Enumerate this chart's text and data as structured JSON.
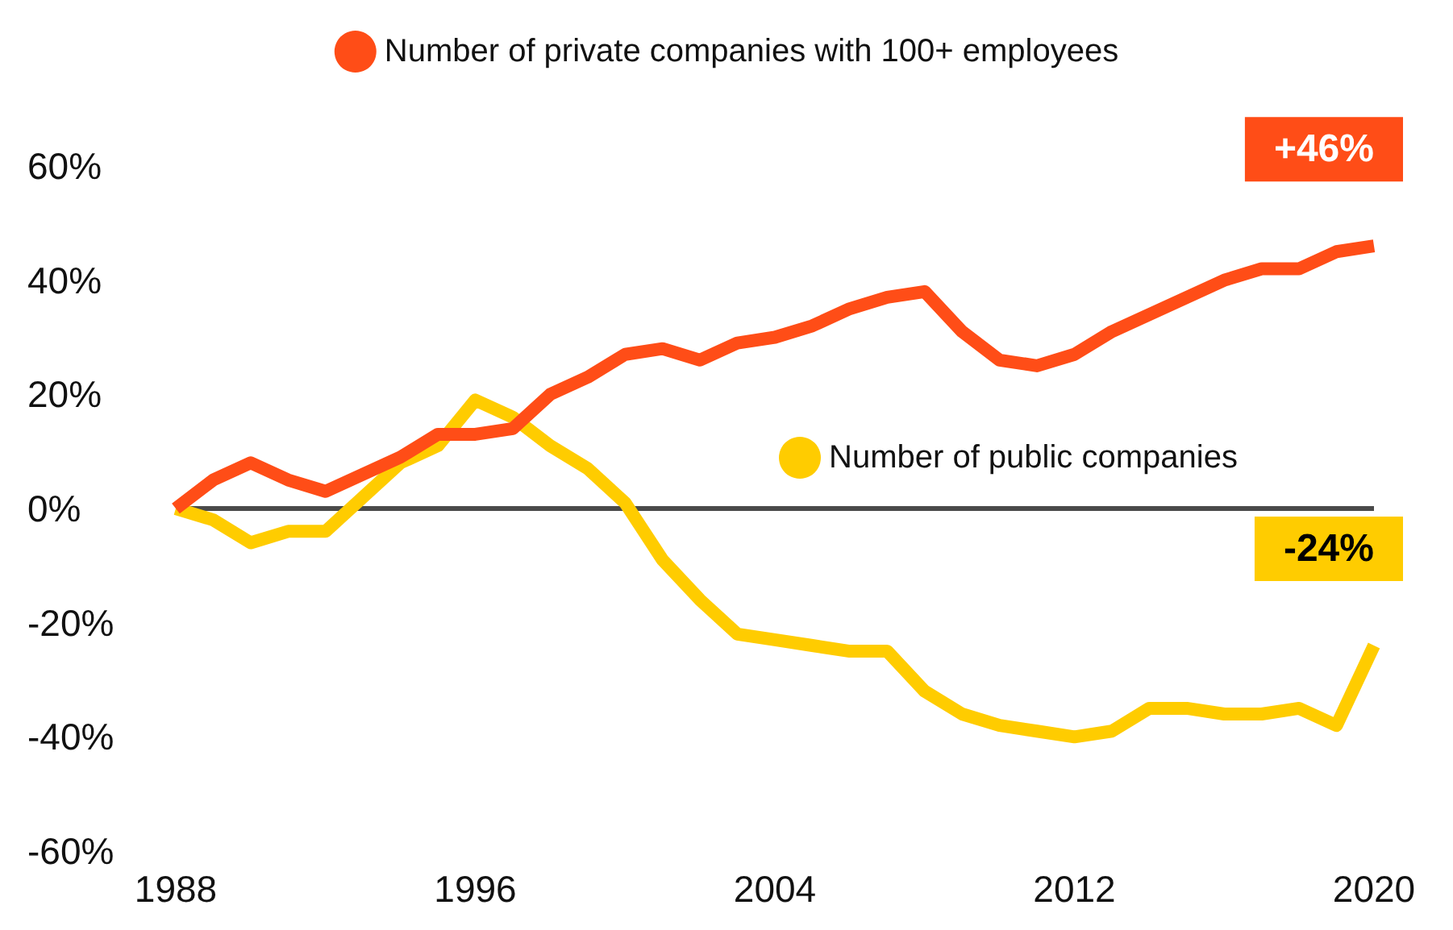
{
  "chart_data": {
    "type": "line",
    "x": [
      1988,
      1989,
      1990,
      1991,
      1992,
      1993,
      1994,
      1995,
      1996,
      1997,
      1998,
      1999,
      2000,
      2001,
      2002,
      2003,
      2004,
      2005,
      2006,
      2007,
      2008,
      2009,
      2010,
      2011,
      2012,
      2013,
      2014,
      2015,
      2016,
      2017,
      2018,
      2019,
      2020
    ],
    "series": [
      {
        "name": "Number of private companies with 100+ employees",
        "color": "#ff4d17",
        "values": [
          0,
          5,
          8,
          5,
          3,
          6,
          9,
          13,
          13,
          14,
          20,
          23,
          27,
          28,
          26,
          29,
          30,
          32,
          35,
          37,
          38,
          31,
          26,
          25,
          27,
          31,
          34,
          37,
          40,
          42,
          42,
          45,
          46
        ]
      },
      {
        "name": "Number of public companies",
        "color": "#ffcc00",
        "values": [
          0,
          -2,
          -6,
          -4,
          -4,
          2,
          8,
          11,
          19,
          16,
          11,
          7,
          1,
          -9,
          -16,
          -22,
          -23,
          -24,
          -25,
          -25,
          -32,
          -36,
          -38,
          -39,
          -40,
          -39,
          -35,
          -35,
          -36,
          -36,
          -35,
          -38,
          -24
        ]
      }
    ],
    "xlim": [
      1988,
      2020
    ],
    "xticks": [
      1988,
      1996,
      2004,
      2012,
      2020
    ],
    "ylim": [
      -60,
      60
    ],
    "yticks": [
      {
        "value": -60,
        "label": "-60%"
      },
      {
        "value": -40,
        "label": "-40%"
      },
      {
        "value": -20,
        "label": "-20%"
      },
      {
        "value": 0,
        "label": "0%"
      },
      {
        "value": 20,
        "label": "20%"
      },
      {
        "value": 40,
        "label": "40%"
      },
      {
        "value": 60,
        "label": "60%"
      }
    ],
    "ref_lines": [
      {
        "axis": "y",
        "value": 0,
        "color": "#4a4a4a"
      }
    ],
    "annotations": [
      {
        "text": "+46%",
        "x": 2020,
        "y": 46
      },
      {
        "text": "-24%",
        "x": 2020,
        "y": -24
      }
    ],
    "legend": "top",
    "grid": false,
    "marker": "none",
    "line_style": "solid"
  }
}
